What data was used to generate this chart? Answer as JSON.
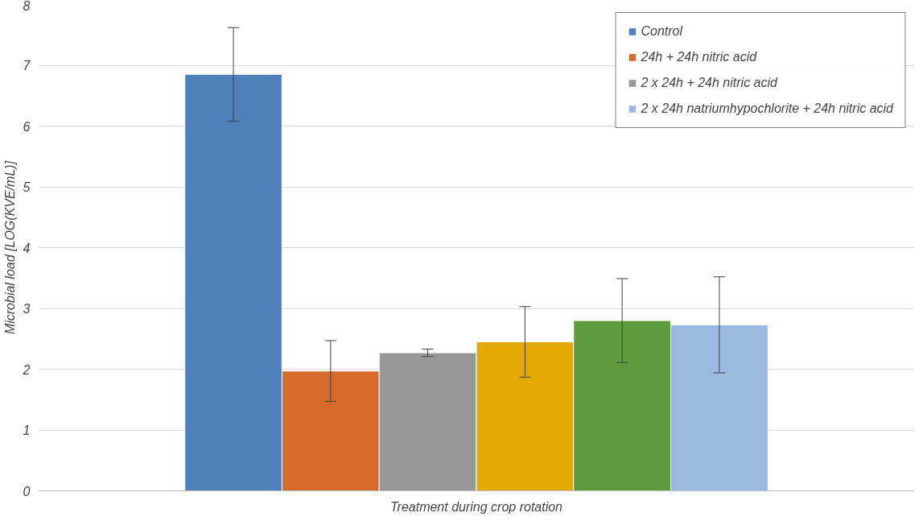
{
  "chart_data": {
    "type": "bar",
    "xlabel": "Treatment during crop rotation",
    "ylabel": "Microbial load [LOG(KVE/mL)]",
    "categories": [
      null
    ],
    "series": [
      {
        "name": "Control",
        "color": "#4f81bd",
        "values": [
          6.85
        ],
        "errors": [
          0.77
        ]
      },
      {
        "name": "24h + 24h nitric acid",
        "color": "#d46b2a",
        "values": [
          1.97
        ],
        "errors": [
          0.5
        ]
      },
      {
        "name": "2 x 24h + 24h nitric acid",
        "color": "#969696",
        "values": [
          2.27
        ],
        "errors": [
          0.06
        ]
      },
      {
        "color": "#e3a900",
        "values": [
          2.45
        ],
        "errors": [
          0.58
        ]
      },
      {
        "color": "#5f9a3c",
        "values": [
          2.8
        ],
        "errors": [
          0.69
        ]
      },
      {
        "name": "2 x 24h natriumhypochlorite + 24h nitric acid",
        "color": "#9ab9e0",
        "values": [
          2.73
        ],
        "errors": [
          0.79
        ]
      }
    ],
    "ylim": [
      0,
      8
    ],
    "yticks": [
      0,
      1,
      2,
      3,
      4,
      5,
      6,
      7,
      8
    ],
    "grid": "y",
    "legend": "top right"
  }
}
